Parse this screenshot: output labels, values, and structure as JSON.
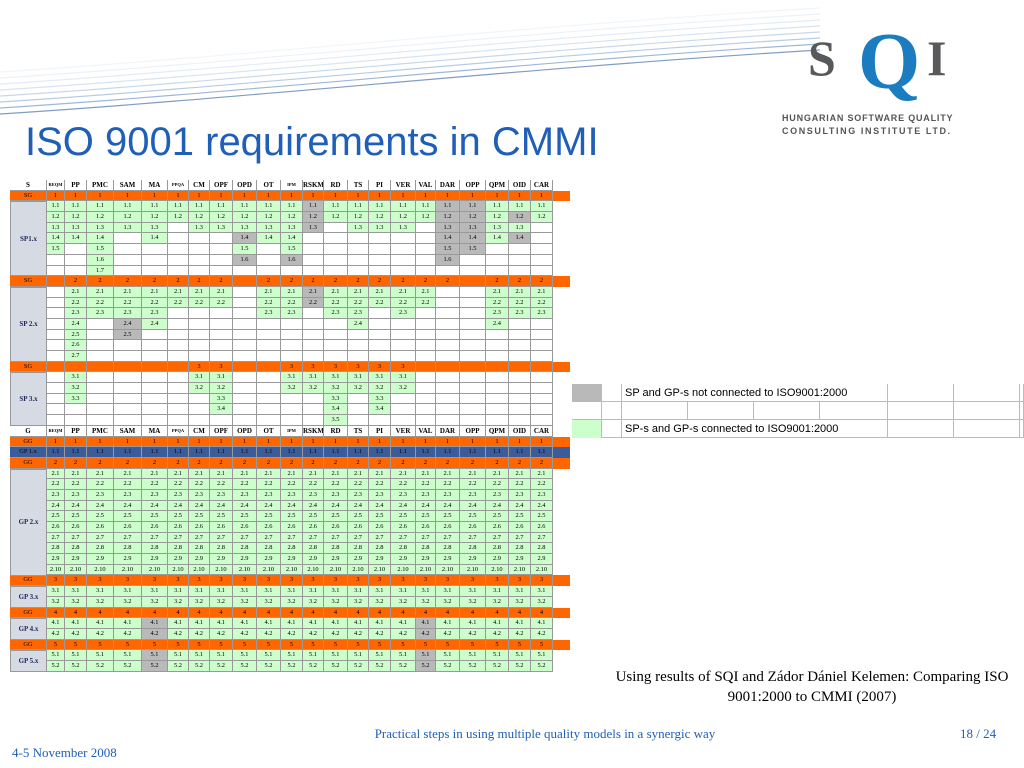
{
  "title": "ISO 9001 requirements in  CMMI",
  "logo": {
    "text_s": "S",
    "text_q": "Q",
    "text_i": "I",
    "line1": "HUNGARIAN SOFTWARE QUALITY",
    "line2": "CONSULTING INSTITUTE LTD."
  },
  "colors": {
    "accent_blue": "#1f5fb8",
    "orange_bar": "#ff6600",
    "blue_bar": "#3b5c9a",
    "not_connected": "#b9b9b9",
    "connected": "#ccffcc"
  },
  "table": {
    "top_header": [
      "S",
      "REQM",
      "PP",
      "PMC",
      "SAM",
      "MA",
      "PPQA",
      "CM",
      "OPF",
      "OPD",
      "OT",
      "IPM",
      "RSKM",
      "RD",
      "TS",
      "PI",
      "VER",
      "VAL",
      "DAR",
      "OPP",
      "QPM",
      "OID",
      "CAR"
    ],
    "gen_header": [
      "G",
      "REQM",
      "PP",
      "PMC",
      "SAM",
      "MA",
      "PPQA",
      "CM",
      "OPF",
      "OPD",
      "OT",
      "IPM",
      "RSKM",
      "RD",
      "TS",
      "PI",
      "VER",
      "VAL",
      "DAR",
      "OPP",
      "QPM",
      "OID",
      "CAR"
    ],
    "sg_label": "SG",
    "gg_label": "GG",
    "sp1_label": "SP1.x",
    "sp2_label": "SP 2.x",
    "sp3_label": "SP 3.x",
    "gp1_label": "GP 1.x",
    "gp2_label": "GP 2.x",
    "gp3_label": "GP 3.x",
    "gp4_label": "GP 4.x",
    "gp5_label": "GP 5.x"
  },
  "legend": {
    "not_connected": "SP and GP-s not connected to ISO9001:2000",
    "connected": "SP-s and GP-s connected to ISO9001:2000"
  },
  "caption": "Using results of SQI and Zádor Dániel Kelemen: Comparing ISO 9001:2000 to CMMI (2007)",
  "footer": {
    "date": "4-5 November 2008",
    "talk_title": "Practical steps in using multiple quality models in a synergic way",
    "page": "18 / 24"
  }
}
